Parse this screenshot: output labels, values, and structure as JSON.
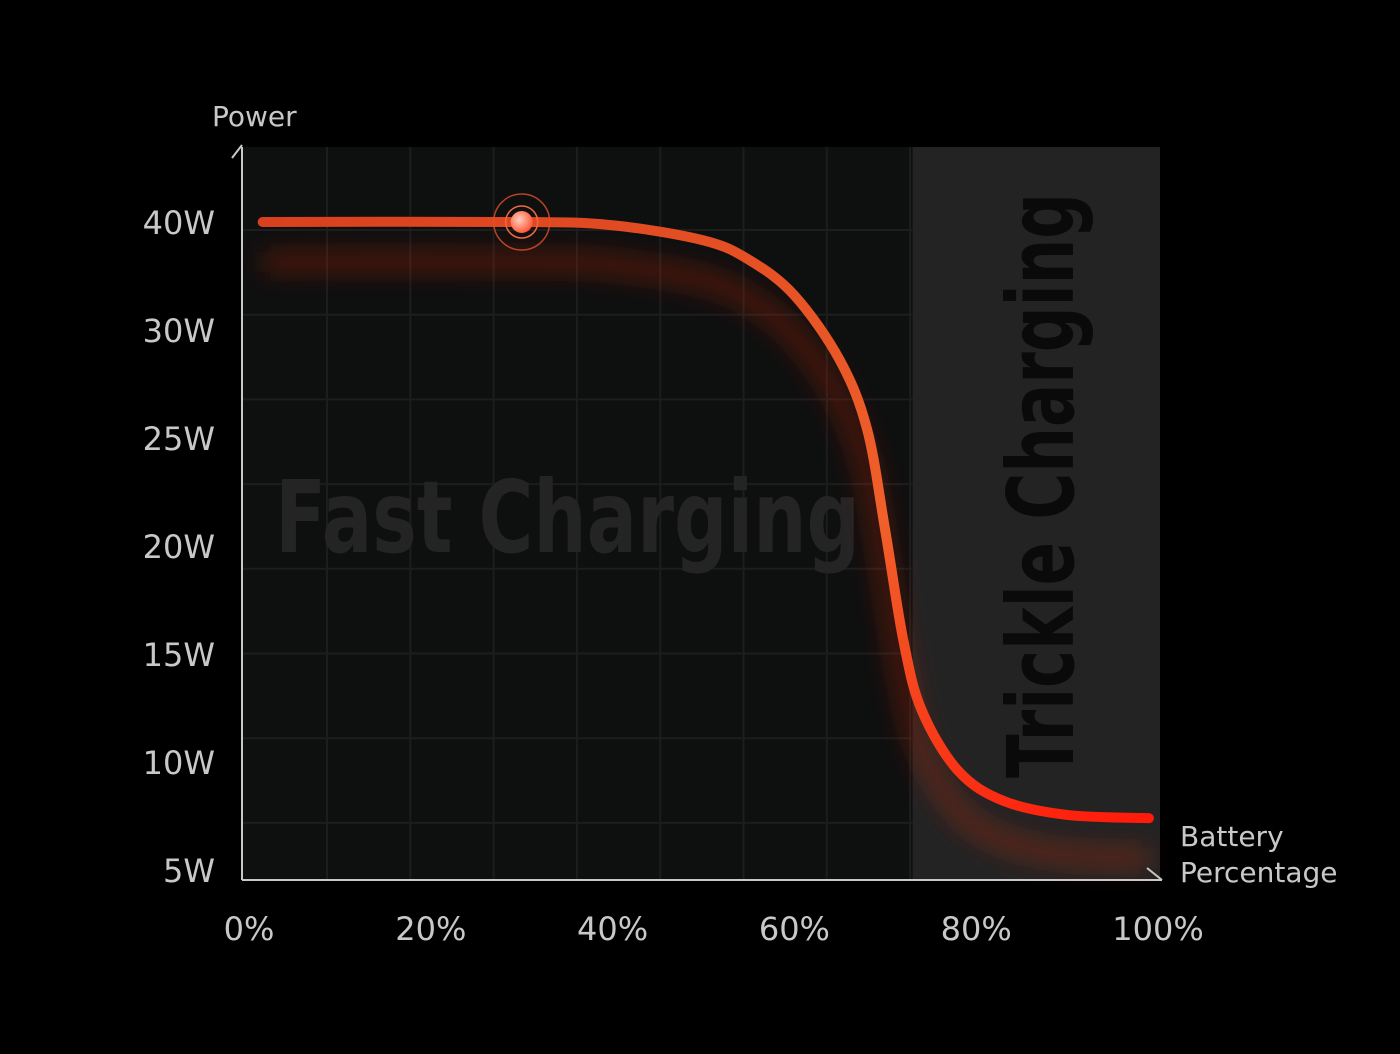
{
  "chart_data": {
    "type": "line",
    "title": "",
    "ylabel": "Power",
    "xlabel_lines": [
      "Battery",
      "Percentage"
    ],
    "y_ticks": [
      "40W",
      "30W",
      "25W",
      "20W",
      "15W",
      "10W",
      "5W"
    ],
    "y_tick_values": [
      40,
      30,
      25,
      20,
      15,
      10,
      5
    ],
    "x_ticks": [
      "0%",
      "20%",
      "40%",
      "60%",
      "80%",
      "100%"
    ],
    "x_tick_values": [
      0,
      20,
      40,
      60,
      80,
      100
    ],
    "xlim": [
      0,
      100
    ],
    "grid": true,
    "regions": [
      {
        "label": "Fast Charging",
        "from": 0,
        "to": 73
      },
      {
        "label": "Trickle Charging",
        "from": 73,
        "to": 100
      }
    ],
    "series": [
      {
        "color": "#ff2a10",
        "x": [
          1.5,
          30,
          40,
          50,
          55,
          60,
          65,
          68,
          70,
          72,
          74,
          78,
          83,
          90,
          99
        ],
        "y": [
          40,
          40,
          39.7,
          38.3,
          36.5,
          33.2,
          28.6,
          25.4,
          20.7,
          15.6,
          12.4,
          9.6,
          8.2,
          7.55,
          7.4
        ]
      }
    ],
    "highlight_point": {
      "x": 30,
      "y": 40
    },
    "colors": {
      "curve_start": "#e04420",
      "curve_end": "#ff1a0a",
      "fast_bg": "#0e0f0f",
      "trickle_bg": "#232323",
      "axis": "#c8c8c8"
    }
  }
}
